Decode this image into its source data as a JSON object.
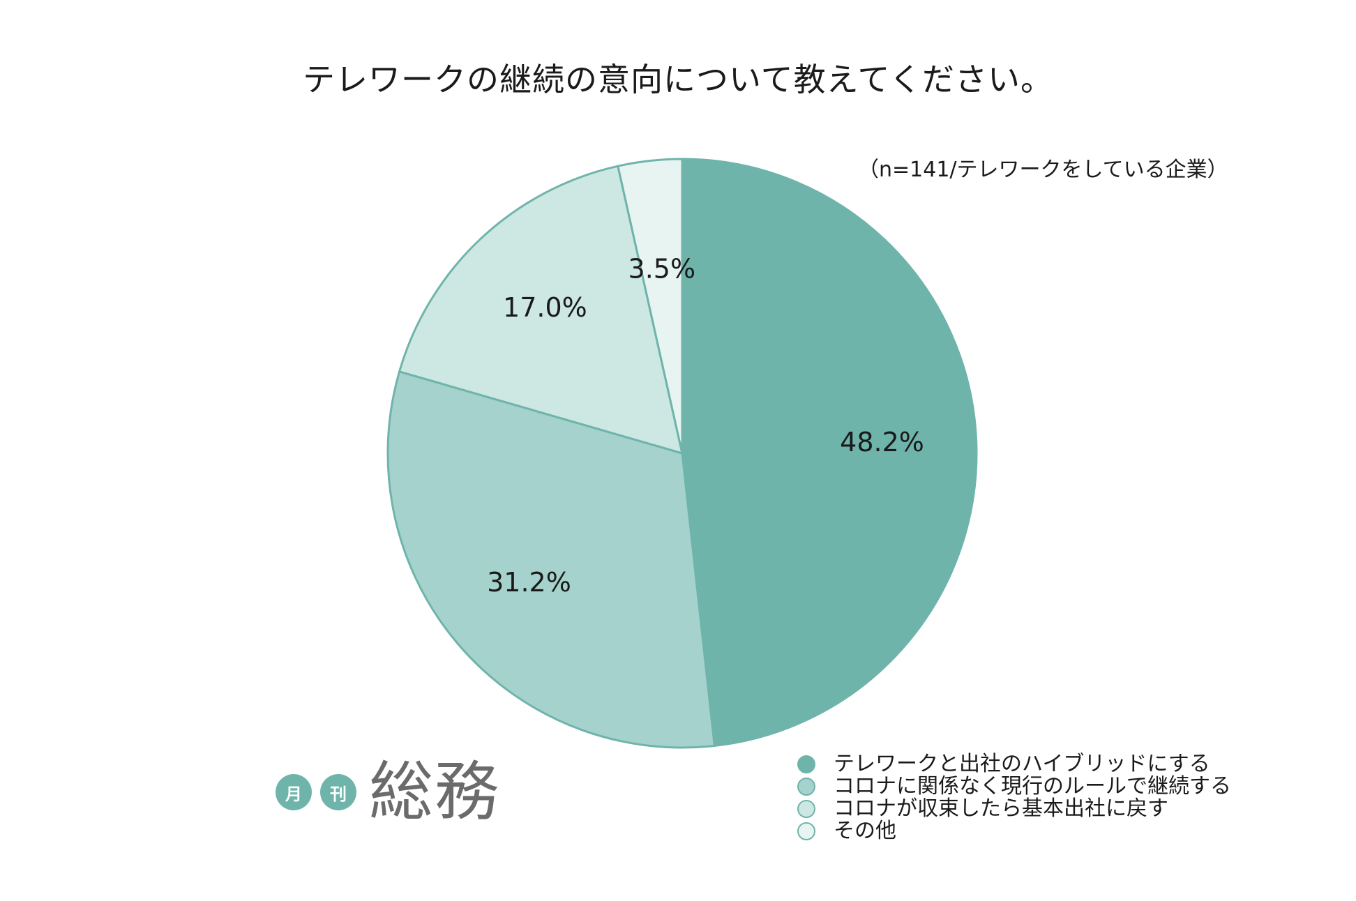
{
  "chart_data": {
    "type": "pie",
    "title": "テレワークの継続の意向について教えてください。",
    "note": "（n=141/テレワークをしている企業）",
    "slices": [
      {
        "label": "テレワークと出社のハイブリッドにする",
        "value": 48.2,
        "value_label": "48.2%",
        "color": "#6fb4ab"
      },
      {
        "label": "コロナに関係なく現行のルールで継続する",
        "value": 31.2,
        "value_label": "31.2%",
        "color": "#a5d2cc"
      },
      {
        "label": "コロナが収束したら基本出社に戻す",
        "value": 17.0,
        "value_label": "17.0%",
        "color": "#cde7e3"
      },
      {
        "label": "その他",
        "value": 3.5,
        "value_label": "3.5%",
        "color": "#e7f4f2"
      }
    ],
    "start_angle": "12 o'clock",
    "direction": "clockwise",
    "legend_position": "bottom-right"
  },
  "brand": {
    "badge_1": "月",
    "badge_2": "刊",
    "name": "総務",
    "accent": "#6fb4ab"
  }
}
